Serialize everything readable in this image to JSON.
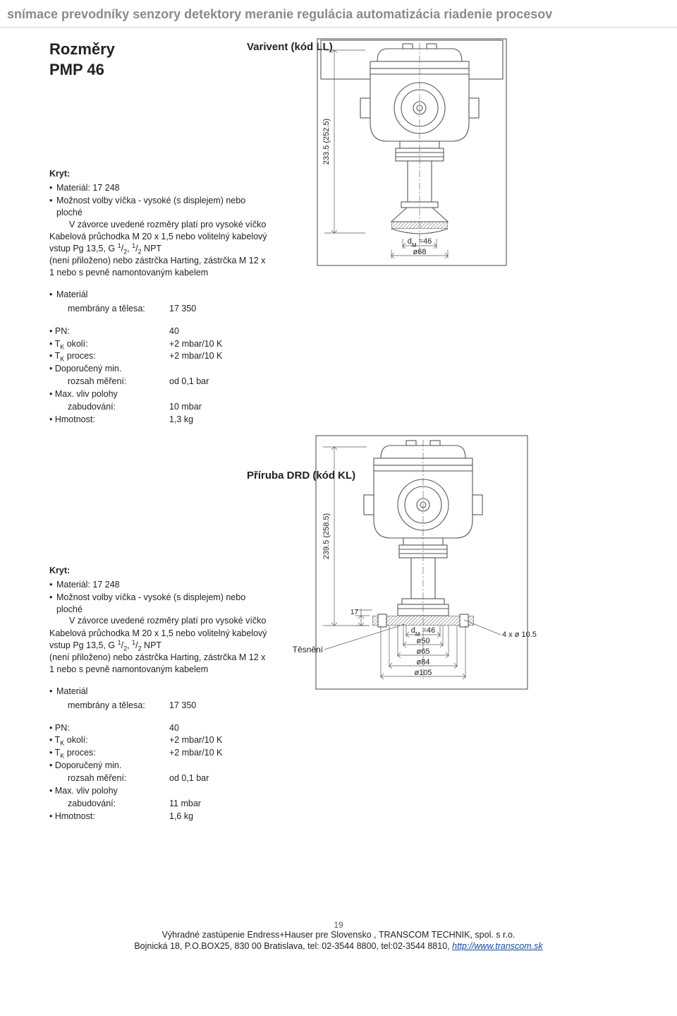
{
  "banner": "snímace prevodníky senzory detektory meranie regulácia automatizácia riadenie procesov",
  "main_title_line1": "Rozměry",
  "main_title_line2": "PMP 46",
  "section1": {
    "title": "Varivent (kód LL)",
    "kryt_label": "Kryt:",
    "bullet_material": "Materiál: 17 248",
    "bullet_cap": "Možnost volby víčka - vysoké (s displejem) nebo ploché",
    "cap_note": "V závorce uvedené rozměry platí pro vysoké víčko",
    "cable1": "Kabelová průchodka M 20 x 1,5 nebo volitelný kabelový vstup Pg 13,5, G ",
    "cable_12a": "1",
    "cable_12b": "2",
    "cable_comma": ", ",
    "cable_12c": "1",
    "cable_12d": "2",
    "cable2": " NPT",
    "cable3": "(není přiloženo) nebo zástrčka Harting, zástrčka M 12 x 1 nebo s pevně namontovaným kabelem",
    "mat_bullet": "Materiál",
    "mat_row_l": "membrány a tělesa:",
    "mat_row_v": "17 350",
    "specs": [
      {
        "l": "PN:",
        "v": "40",
        "bullet": true
      },
      {
        "l": "T",
        "sub": "K",
        "lrest": " okolí:",
        "v": "+2 mbar/10 K",
        "bullet": true
      },
      {
        "l": "T",
        "sub": "K",
        "lrest": " proces:",
        "v": "+2 mbar/10 K",
        "bullet": true
      },
      {
        "l": "Doporučený min.",
        "v": "",
        "bullet": true
      },
      {
        "l": "rozsah měření:",
        "v": "od 0,1 bar",
        "indent": true
      },
      {
        "l": "Max. vliv polohy",
        "v": "",
        "bullet": true
      },
      {
        "l": "zabudování:",
        "v": "10 mbar",
        "indent": true
      },
      {
        "l": "Hmotnost:",
        "v": "1,3 kg",
        "bullet": true
      }
    ],
    "figure": {
      "height_label": "233.5 (252.5)",
      "dm_label": "d",
      "dm_sub": "M",
      "dm_val": " =46",
      "diam": "ø68"
    }
  },
  "section2": {
    "title": "Příruba DRD (kód KL)",
    "kryt_label": "Kryt:",
    "bullet_material": "Materiál: 17 248",
    "bullet_cap": "Možnost volby víčka - vysoké (s displejem) nebo ploché",
    "cap_note": "V závorce uvedené rozměry platí pro vysoké víčko",
    "cable1": "Kabelová průchodka M 20 x 1,5 nebo volitelný kabelový vstup Pg 13,5, G ",
    "cable_12a": "1",
    "cable_12b": "2",
    "cable_comma": ", ",
    "cable_12c": "1",
    "cable_12d": "2",
    "cable2": " NPT",
    "cable3": "(není přiloženo) nebo zástrčka Harting, zástrčka M 12 x 1 nebo s pevně namontovaným kabelem",
    "mat_bullet": "Materiál",
    "mat_row_l": "membrány a tělesa:",
    "mat_row_v": "17 350",
    "specs": [
      {
        "l": "PN:",
        "v": "40",
        "bullet": true
      },
      {
        "l": "T",
        "sub": "K",
        "lrest": " okolí:",
        "v": "+2 mbar/10 K",
        "bullet": true
      },
      {
        "l": "T",
        "sub": "K",
        "lrest": " proces:",
        "v": "+2 mbar/10 K",
        "bullet": true
      },
      {
        "l": "Doporučený min.",
        "v": "",
        "bullet": true
      },
      {
        "l": "rozsah měření:",
        "v": "od 0,1 bar",
        "indent": true
      },
      {
        "l": "Max. vliv polohy",
        "v": "",
        "bullet": true
      },
      {
        "l": "zabudování:",
        "v": "11 mbar",
        "indent": true
      },
      {
        "l": "Hmotnost:",
        "v": "1,6 kg",
        "bullet": true
      }
    ],
    "tesneni": "Těsnění",
    "figure": {
      "height_label": "239.5 (258.5)",
      "h17": "17",
      "dm_label": "d",
      "dm_sub": "M",
      "dm_val": " =46",
      "holes": "4 x ø 10.5",
      "d50": "ø50",
      "d65": "ø65",
      "d84": "ø84",
      "d105": "ø105"
    }
  },
  "footer": {
    "page": "19",
    "line1a": "Výhradné zastúpenie Endress+Hauser pre Slovensko , TRANSCOM TECHNIK, spol. s r.o.",
    "line2a": "Bojnická 18, P.O.BOX25, 830 00 Bratislava, tel: 02-3544 8800, tel:02-3544 8810,  ",
    "url": "http://www.transcom.sk"
  },
  "style": {
    "stroke": "#565656",
    "hatch": "#7a7a7a",
    "text": "#222222",
    "stroke_w": 1.1,
    "stroke_thin": 0.7
  }
}
